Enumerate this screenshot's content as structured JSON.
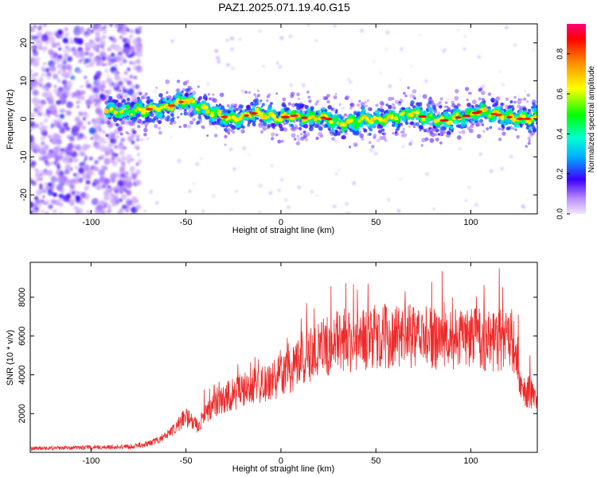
{
  "title": "PAZ1.2025.071.19.40.G15",
  "chart_data": [
    {
      "type": "heatmap",
      "xlabel": "Height of straight line (km)",
      "ylabel": "Frequency (Hz)",
      "xlim": [
        -132,
        135
      ],
      "ylim": [
        -25,
        25
      ],
      "x_ticks": [
        -100,
        -50,
        0,
        50,
        100
      ],
      "y_ticks": [
        -20,
        -10,
        0,
        10,
        20
      ],
      "colorbar": {
        "label": "Normalized spectral amplitude",
        "range": [
          0,
          0.95
        ],
        "ticks": [
          0.0,
          0.2,
          0.4,
          0.6,
          0.8
        ]
      },
      "ridge": {
        "x": [
          -92,
          -80,
          -70,
          -60,
          -55,
          -50,
          -45,
          -40,
          -35,
          -30,
          -25,
          -20,
          -15,
          -10,
          -5,
          0,
          5,
          10,
          15,
          20,
          25,
          30,
          35,
          40,
          45,
          50,
          55,
          60,
          65,
          70,
          75,
          80,
          85,
          90,
          95,
          100,
          105,
          110,
          115,
          120,
          125,
          130,
          135
        ],
        "y": [
          2,
          2,
          2.5,
          3,
          4,
          5,
          3.5,
          2.5,
          1.5,
          0.5,
          0,
          0.5,
          1.5,
          1,
          0.5,
          0,
          1,
          0.5,
          0,
          0.5,
          0,
          -1.5,
          -1,
          -0.5,
          0,
          -0.5,
          0,
          0.5,
          1,
          1.5,
          0.5,
          0,
          -0.5,
          0,
          0.5,
          1,
          2,
          1.5,
          1,
          0.5,
          0,
          0,
          0.5
        ]
      }
    },
    {
      "type": "line",
      "color": "#ee2a2a",
      "xlabel": "Height of straight line (km)",
      "ylabel": "SNR (10 * v/v)",
      "xlim": [
        -132,
        135
      ],
      "ylim": [
        0,
        9800
      ],
      "x_ticks": [
        -100,
        -50,
        0,
        50,
        100
      ],
      "y_ticks": [
        2000,
        4000,
        6000,
        8000
      ],
      "envelope": {
        "x": [
          -132,
          -100,
          -80,
          -72,
          -65,
          -58,
          -52,
          -48,
          -44,
          -40,
          -35,
          -30,
          -25,
          -20,
          -15,
          -10,
          -5,
          0,
          5,
          10,
          15,
          20,
          25,
          30,
          35,
          40,
          45,
          50,
          60,
          70,
          80,
          90,
          100,
          110,
          120,
          124,
          126,
          130,
          135
        ],
        "y": [
          200,
          250,
          300,
          400,
          600,
          1000,
          1700,
          1800,
          1300,
          2000,
          2400,
          2800,
          3000,
          3200,
          3400,
          3500,
          3700,
          3900,
          4200,
          4600,
          5000,
          5300,
          5500,
          5700,
          5700,
          5800,
          5900,
          6000,
          6000,
          6000,
          5900,
          5800,
          5800,
          5800,
          5700,
          5600,
          3200,
          3100,
          3100
        ]
      }
    }
  ]
}
